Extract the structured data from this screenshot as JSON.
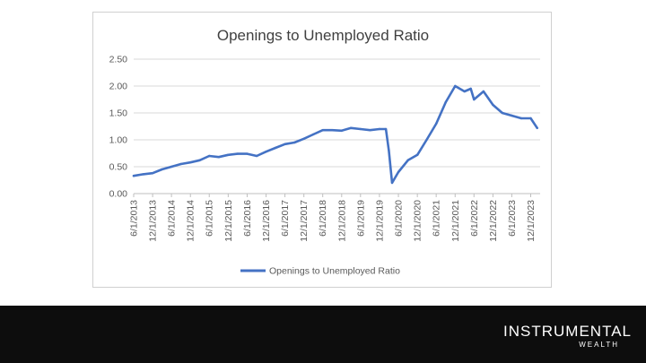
{
  "brand": {
    "name": "INSTRUMENTAL",
    "sub": "WEALTH"
  },
  "colors": {
    "line": "#4472c4",
    "grid": "#d9d9d9",
    "text": "#595959",
    "footer": "#0d0d0d"
  },
  "chart_data": {
    "type": "line",
    "title": "Openings to Unemployed Ratio",
    "xlabel": "",
    "ylabel": "",
    "ylim": [
      0,
      2.5
    ],
    "yticks": [
      "0.00",
      "0.50",
      "1.00",
      "1.50",
      "2.00",
      "2.50"
    ],
    "xticks": [
      "6/1/2013",
      "12/1/2013",
      "6/1/2014",
      "12/1/2014",
      "6/1/2015",
      "12/1/2015",
      "6/1/2016",
      "12/1/2016",
      "6/1/2017",
      "12/1/2017",
      "6/1/2018",
      "12/1/2018",
      "6/1/2019",
      "12/1/2019",
      "6/1/2020",
      "12/1/2020",
      "6/1/2021",
      "12/1/2021",
      "6/1/2022",
      "12/1/2022",
      "6/1/2023",
      "12/1/2023"
    ],
    "grid": true,
    "legend": "bottom",
    "series": [
      {
        "name": "Openings to Unemployed Ratio",
        "x": [
          "6/1/2013",
          "9/1/2013",
          "12/1/2013",
          "3/1/2014",
          "6/1/2014",
          "9/1/2014",
          "12/1/2014",
          "3/1/2015",
          "6/1/2015",
          "9/1/2015",
          "12/1/2015",
          "3/1/2016",
          "6/1/2016",
          "9/1/2016",
          "12/1/2016",
          "3/1/2017",
          "6/1/2017",
          "9/1/2017",
          "12/1/2017",
          "3/1/2018",
          "6/1/2018",
          "9/1/2018",
          "12/1/2018",
          "3/1/2019",
          "6/1/2019",
          "9/1/2019",
          "12/1/2019",
          "2/1/2020",
          "3/1/2020",
          "4/1/2020",
          "6/1/2020",
          "9/1/2020",
          "12/1/2020",
          "3/1/2021",
          "6/1/2021",
          "9/1/2021",
          "12/1/2021",
          "3/1/2022",
          "5/1/2022",
          "6/1/2022",
          "9/1/2022",
          "12/1/2022",
          "3/1/2023",
          "6/1/2023",
          "9/1/2023",
          "12/1/2023",
          "2/1/2024"
        ],
        "values": [
          0.33,
          0.36,
          0.38,
          0.45,
          0.5,
          0.55,
          0.58,
          0.62,
          0.7,
          0.68,
          0.72,
          0.74,
          0.74,
          0.7,
          0.78,
          0.85,
          0.92,
          0.95,
          1.02,
          1.1,
          1.18,
          1.18,
          1.17,
          1.22,
          1.2,
          1.18,
          1.2,
          1.2,
          0.8,
          0.2,
          0.4,
          0.62,
          0.72,
          1.0,
          1.3,
          1.7,
          2.0,
          1.9,
          1.95,
          1.75,
          1.9,
          1.65,
          1.5,
          1.45,
          1.4,
          1.4,
          1.22
        ]
      }
    ]
  }
}
